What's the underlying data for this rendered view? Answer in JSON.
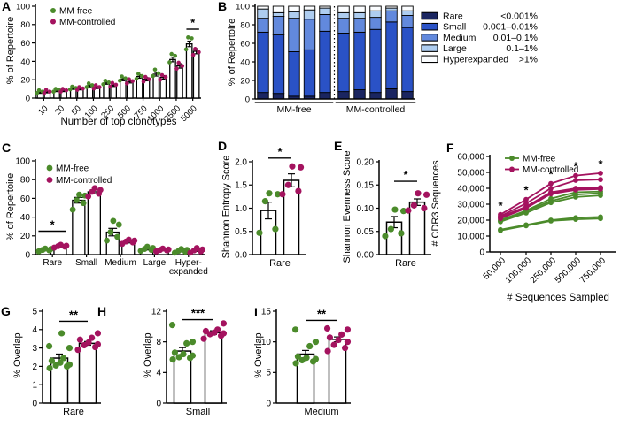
{
  "colors": {
    "mm_free": "#4b8b2b",
    "mm_controlled": "#a4135f",
    "rare": "#1a2560",
    "small": "#2a52c6",
    "medium": "#6289dd",
    "large": "#aecdf0",
    "hyperexpanded": "#fbfdff",
    "axis": "#000000"
  },
  "chart_data": [
    {
      "panel": "A",
      "type": "bar",
      "ylabel": "% of Repertoire",
      "xlabel": "Number of top clonotypes",
      "ylim": [
        0,
        100
      ],
      "ytick_values": [
        0,
        20,
        40,
        60,
        80,
        100
      ],
      "ytick_labels": [
        "0",
        "20",
        "40",
        "60",
        "80",
        "100"
      ],
      "categories": [
        "10",
        "20",
        "50",
        "100",
        "250",
        "500",
        "750",
        "1000",
        "2500",
        "5000"
      ],
      "series": [
        {
          "name": "MM-free",
          "color": "mm_free",
          "values": [
            6,
            8,
            10.5,
            13.5,
            16.5,
            20.5,
            23.5,
            26,
            42,
            59
          ],
          "errors": [
            0.8,
            0.9,
            1,
            1.2,
            1.4,
            1.6,
            1.8,
            2,
            2.5,
            3
          ],
          "points": [
            [
              5.5,
              7,
              8.5
            ],
            [
              7,
              8.5,
              10
            ],
            [
              9.5,
              11,
              12.5
            ],
            [
              12,
              14,
              16
            ],
            [
              15,
              17,
              19
            ],
            [
              19,
              21.5,
              23.5
            ],
            [
              21,
              24,
              26.5
            ],
            [
              24,
              27,
              31
            ],
            [
              39,
              46,
              48
            ],
            [
              53,
              65,
              66
            ]
          ]
        },
        {
          "name": "MM-controlled",
          "color": "mm_controlled",
          "values": [
            6.5,
            8,
            10,
            11.5,
            14,
            18,
            20.5,
            22.5,
            35,
            51
          ],
          "errors": [
            0.8,
            0.9,
            1,
            1.1,
            1.3,
            1.5,
            1.7,
            1.9,
            2.4,
            2.8
          ],
          "points": [
            [
              5.5,
              7,
              9
            ],
            [
              7,
              8.5,
              10
            ],
            [
              9,
              10.5,
              12
            ],
            [
              10.5,
              12,
              14
            ],
            [
              12.5,
              14.5,
              16.5
            ],
            [
              16,
              18.5,
              20.5
            ],
            [
              18,
              20.5,
              23
            ],
            [
              20,
              23,
              25
            ],
            [
              32,
              35,
              38.5
            ],
            [
              47,
              50,
              53.5
            ]
          ]
        }
      ],
      "significance": [
        {
          "category": "5000",
          "label": "*"
        }
      ]
    },
    {
      "panel": "B",
      "type": "stacked_bar",
      "ylabel": "% of Repertoire",
      "ylim": [
        0,
        100
      ],
      "ytick_values": [
        0,
        20,
        40,
        60,
        80,
        100
      ],
      "ytick_labels": [
        "0",
        "20",
        "40",
        "60",
        "80",
        "100"
      ],
      "groups": [
        {
          "label": "MM-free",
          "count": 5
        },
        {
          "label": "MM-controlled",
          "count": 5
        }
      ],
      "series": [
        {
          "name": "Rare",
          "range": "<0.001%",
          "color": "rare",
          "values": [
            7,
            6,
            3,
            3,
            7,
            8,
            10,
            7,
            11,
            8
          ]
        },
        {
          "name": "Small",
          "range": "0.001–0.01%",
          "color": "small",
          "values": [
            65,
            63,
            48,
            50,
            66,
            63,
            62,
            68,
            72,
            69
          ]
        },
        {
          "name": "Medium",
          "range": "0.01–0.1%",
          "color": "medium",
          "values": [
            15,
            20,
            36,
            33,
            18,
            16,
            15,
            13,
            12,
            13
          ]
        },
        {
          "name": "Large",
          "range": "0.1–1%",
          "color": "large",
          "values": [
            10,
            4,
            7,
            10,
            7,
            6,
            6,
            7,
            3,
            5
          ]
        },
        {
          "name": "Hyperexpanded",
          "range": ">1%",
          "color": "hyperexpanded",
          "values": [
            3,
            7,
            6,
            4,
            2,
            7,
            7,
            5,
            2,
            5
          ]
        }
      ]
    },
    {
      "panel": "C",
      "type": "bar",
      "ylabel": "% of Repertoire",
      "xlabel": "",
      "ylim": [
        0,
        100
      ],
      "ytick_values": [
        0,
        20,
        40,
        60,
        80,
        100
      ],
      "ytick_labels": [
        "0",
        "20",
        "40",
        "60",
        "80",
        "100"
      ],
      "categories": [
        "Rare",
        "Small",
        "Medium",
        "Large",
        "Hyper-\nexpanded"
      ],
      "series": [
        {
          "name": "MM-free",
          "color": "mm_free",
          "values": [
            5,
            58,
            24,
            6,
            4
          ],
          "errors": [
            0.8,
            3,
            4,
            1,
            1
          ],
          "points": [
            [
              3.5,
              4.5,
              5,
              6,
              6.5
            ],
            [
              48,
              55,
              58,
              63,
              64
            ],
            [
              15,
              19,
              24,
              32,
              36
            ],
            [
              4,
              5,
              6,
              7,
              8.5
            ],
            [
              2,
              3,
              4,
              5,
              6
            ]
          ]
        },
        {
          "name": "MM-controlled",
          "color": "mm_controlled",
          "values": [
            9,
            67,
            14,
            5,
            4.5
          ],
          "errors": [
            0.7,
            2,
            1.5,
            0.8,
            1
          ],
          "points": [
            [
              7.5,
              8.5,
              9,
              9.5,
              10.5
            ],
            [
              62,
              65,
              67,
              69,
              71
            ],
            [
              11.5,
              13,
              14,
              15,
              16
            ],
            [
              3.5,
              4.5,
              5,
              5.5,
              6.5
            ],
            [
              2,
              3.5,
              4.5,
              5.5,
              7
            ]
          ]
        }
      ],
      "significance": [
        {
          "category": "Rare",
          "label": "*"
        }
      ]
    },
    {
      "panel": "D",
      "type": "bar_scatter",
      "ylabel": "Shannon Entropy Score",
      "category": "Rare",
      "ylim": [
        0,
        2
      ],
      "ytick_values": [
        0,
        0.5,
        1,
        1.5,
        2
      ],
      "ytick_labels": [
        "0.0",
        "0.5",
        "1.0",
        "1.5",
        "2.0"
      ],
      "groups": [
        {
          "name": "MM-free",
          "color": "mm_free",
          "mean": 0.95,
          "error": 0.18,
          "points": [
            0.47,
            0.55,
            1.15,
            1.3,
            1.32
          ]
        },
        {
          "name": "MM-controlled",
          "color": "mm_controlled",
          "mean": 1.6,
          "error": 0.14,
          "points": [
            1.3,
            1.37,
            1.5,
            1.88,
            1.9
          ]
        }
      ],
      "significance": "*"
    },
    {
      "panel": "E",
      "type": "bar_scatter",
      "ylabel": "Shannon Evenness Score",
      "category": "Rare",
      "ylim": [
        0,
        0.2
      ],
      "ytick_values": [
        0,
        0.05,
        0.1,
        0.15,
        0.2
      ],
      "ytick_labels": [
        "0.00",
        "0.05",
        "0.10",
        "0.15",
        "0.20"
      ],
      "groups": [
        {
          "name": "MM-free",
          "color": "mm_free",
          "mean": 0.07,
          "error": 0.012,
          "points": [
            0.04,
            0.046,
            0.055,
            0.094,
            0.097
          ]
        },
        {
          "name": "MM-controlled",
          "color": "mm_controlled",
          "mean": 0.113,
          "error": 0.007,
          "points": [
            0.095,
            0.1,
            0.106,
            0.129,
            0.132
          ]
        }
      ],
      "significance": "*"
    },
    {
      "panel": "F",
      "type": "line",
      "ylabel": "# CDR3 Sequences",
      "xlabel": "# Sequences Sampled",
      "ylim": [
        0,
        60000
      ],
      "ytick_values": [
        0,
        10000,
        20000,
        30000,
        40000,
        50000,
        60000
      ],
      "ytick_labels": [
        "0",
        "10,000",
        "20,000",
        "30,000",
        "40,000",
        "50,000",
        "60,000"
      ],
      "x_categories": [
        "50,000",
        "100,000",
        "250,000",
        "500,000",
        "750,000"
      ],
      "series": [
        {
          "name": "MM-free",
          "color": "mm_free",
          "lines": [
            [
              13500,
              16500,
              19500,
              20500,
              21000
            ],
            [
              14000,
              17000,
              20000,
              21500,
              22000
            ],
            [
              19000,
              24500,
              31000,
              34500,
              35500
            ],
            [
              19500,
              25500,
              32000,
              36000,
              37000
            ],
            [
              20000,
              26000,
              33500,
              37500,
              38000
            ]
          ]
        },
        {
          "name": "MM-controlled",
          "color": "mm_controlled",
          "lines": [
            [
              21000,
              27500,
              36500,
              39000,
              39500
            ],
            [
              21500,
              28000,
              37000,
              39500,
              40000
            ],
            [
              22000,
              28500,
              37500,
              40000,
              40500
            ],
            [
              22500,
              30500,
              40000,
              45000,
              45500
            ],
            [
              23500,
              33000,
              43000,
              48000,
              49500
            ]
          ]
        }
      ],
      "significance": [
        "*",
        "*",
        "*",
        "*",
        "*"
      ]
    },
    {
      "panel": "G",
      "type": "bar_scatter",
      "ylabel": "% Overlap",
      "category": "Rare",
      "ylim": [
        0,
        5
      ],
      "ytick_values": [
        0,
        1,
        2,
        3,
        4,
        5
      ],
      "ytick_labels": [
        "0",
        "1",
        "2",
        "3",
        "4",
        "5"
      ],
      "groups": [
        {
          "name": "MM-free",
          "color": "mm_free",
          "mean": 2.45,
          "error": 0.22,
          "points": [
            1.9,
            2.0,
            2.05,
            2.1,
            2.2,
            2.3,
            2.45,
            3.0,
            3.1,
            3.8
          ]
        },
        {
          "name": "MM-controlled",
          "color": "mm_controlled",
          "mean": 3.25,
          "error": 0.1,
          "points": [
            2.9,
            3.05,
            3.15,
            3.2,
            3.3,
            3.45,
            3.55,
            3.8
          ]
        }
      ],
      "significance": "**"
    },
    {
      "panel": "H",
      "type": "bar_scatter",
      "ylabel": "% Overlap",
      "category": "Small",
      "ylim": [
        0,
        12
      ],
      "ytick_values": [
        0,
        4,
        8,
        12
      ],
      "ytick_labels": [
        "0",
        "4",
        "8",
        "12"
      ],
      "groups": [
        {
          "name": "MM-free",
          "color": "mm_free",
          "mean": 6.8,
          "error": 0.45,
          "points": [
            5.7,
            5.9,
            6.0,
            6.2,
            6.4,
            6.6,
            7.8,
            8.0,
            10.2
          ]
        },
        {
          "name": "MM-controlled",
          "color": "mm_controlled",
          "mean": 9.2,
          "error": 0.25,
          "points": [
            8.4,
            8.8,
            9.0,
            9.1,
            9.2,
            9.4,
            9.6,
            10.4
          ]
        }
      ],
      "significance": "***"
    },
    {
      "panel": "I",
      "type": "bar_scatter",
      "ylabel": "% Overlap",
      "category": "Medium",
      "ylim": [
        0,
        15
      ],
      "ytick_values": [
        0,
        5,
        10,
        15
      ],
      "ytick_labels": [
        "0",
        "5",
        "10",
        "15"
      ],
      "groups": [
        {
          "name": "MM-free",
          "color": "mm_free",
          "mean": 8.0,
          "error": 0.6,
          "points": [
            6.5,
            6.8,
            7.0,
            7.2,
            7.4,
            7.6,
            9.3,
            10.0,
            12.0
          ]
        },
        {
          "name": "MM-controlled",
          "color": "mm_controlled",
          "mean": 10.4,
          "error": 0.4,
          "points": [
            8.5,
            9.0,
            9.5,
            10.0,
            10.3,
            10.7,
            11.2,
            12.0,
            12.2
          ]
        }
      ],
      "significance": "**"
    }
  ]
}
